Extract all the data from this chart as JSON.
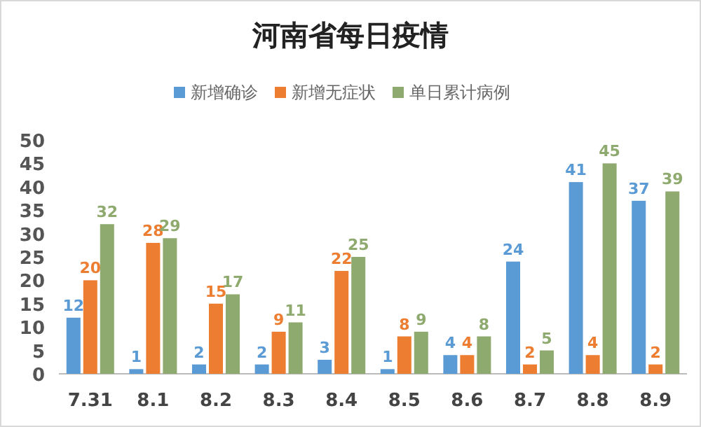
{
  "chart_data": {
    "type": "bar",
    "title": "河南省每日疫情",
    "categories": [
      "7.31",
      "8.1",
      "8.2",
      "8.3",
      "8.4",
      "8.5",
      "8.6",
      "8.7",
      "8.8",
      "8.9"
    ],
    "series": [
      {
        "name": "新增确诊",
        "color": "#5b9bd5",
        "values": [
          12,
          1,
          2,
          2,
          3,
          1,
          4,
          24,
          41,
          37
        ]
      },
      {
        "name": "新增无症状",
        "color": "#ed7d31",
        "values": [
          20,
          28,
          15,
          9,
          22,
          8,
          4,
          2,
          4,
          2
        ]
      },
      {
        "name": "单日累计病例",
        "color": "#8faa6e",
        "values": [
          32,
          29,
          17,
          11,
          25,
          9,
          8,
          5,
          45,
          39
        ]
      }
    ],
    "ylim": [
      0,
      50
    ],
    "yticks": [
      0,
      5,
      10,
      15,
      20,
      25,
      30,
      35,
      40,
      45,
      50
    ],
    "data_labels": true,
    "legend": "top",
    "grid": false
  }
}
